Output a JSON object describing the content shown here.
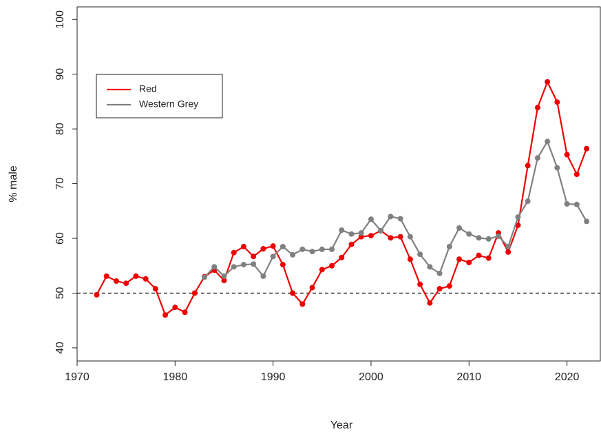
{
  "chart_data": {
    "type": "line",
    "x_label": "Year",
    "y_label": "% male",
    "x": [
      1972,
      1973,
      1974,
      1975,
      1976,
      1977,
      1978,
      1979,
      1980,
      1981,
      1982,
      1983,
      1984,
      1985,
      1986,
      1987,
      1988,
      1989,
      1990,
      1991,
      1992,
      1993,
      1994,
      1995,
      1996,
      1997,
      1998,
      1999,
      2000,
      2001,
      2002,
      2003,
      2004,
      2005,
      2006,
      2007,
      2008,
      2009,
      2010,
      2011,
      2012,
      2013,
      2014,
      2015,
      2016,
      2017,
      2018,
      2019,
      2020,
      2021,
      2022
    ],
    "series": [
      {
        "name": "Red",
        "color": "#ee0000",
        "values": [
          49.7,
          53.1,
          52.2,
          51.8,
          53.1,
          52.6,
          50.8,
          46.0,
          47.4,
          46.5,
          50.0,
          53.0,
          54.2,
          52.3,
          57.4,
          58.5,
          56.7,
          58.1,
          58.6,
          55.2,
          50.0,
          48.0,
          51.0,
          54.3,
          55.0,
          56.5,
          58.9,
          60.3,
          60.5,
          61.4,
          60.1,
          60.3,
          56.2,
          51.6,
          48.2,
          50.8,
          51.3,
          56.2,
          55.6,
          56.9,
          56.4,
          61.0,
          57.5,
          62.4,
          73.3,
          83.9,
          88.6,
          84.9,
          75.3,
          71.7,
          76.4
        ]
      },
      {
        "name": "Western Grey",
        "color": "#808080",
        "values": [
          null,
          null,
          null,
          null,
          null,
          null,
          null,
          null,
          null,
          null,
          null,
          52.9,
          54.8,
          53.1,
          54.8,
          55.2,
          55.3,
          53.1,
          56.7,
          58.5,
          57.0,
          58.0,
          57.6,
          58.0,
          58.0,
          61.5,
          60.8,
          61.0,
          63.5,
          61.4,
          64.0,
          63.6,
          60.3,
          57.1,
          54.8,
          53.6,
          58.5,
          61.9,
          60.8,
          60.1,
          59.9,
          60.4,
          58.5,
          63.9,
          66.8,
          74.7,
          77.7,
          72.9,
          66.3,
          66.2,
          63.1
        ]
      }
    ],
    "xlim": [
      1970,
      2023.4
    ],
    "ylim": [
      37.6,
      102.3
    ],
    "xticks": [
      1970,
      1980,
      1990,
      2000,
      2010,
      2020
    ],
    "yticks": [
      40,
      50,
      60,
      70,
      80,
      90,
      100
    ],
    "reference_line": 50,
    "legend": "top-left"
  }
}
